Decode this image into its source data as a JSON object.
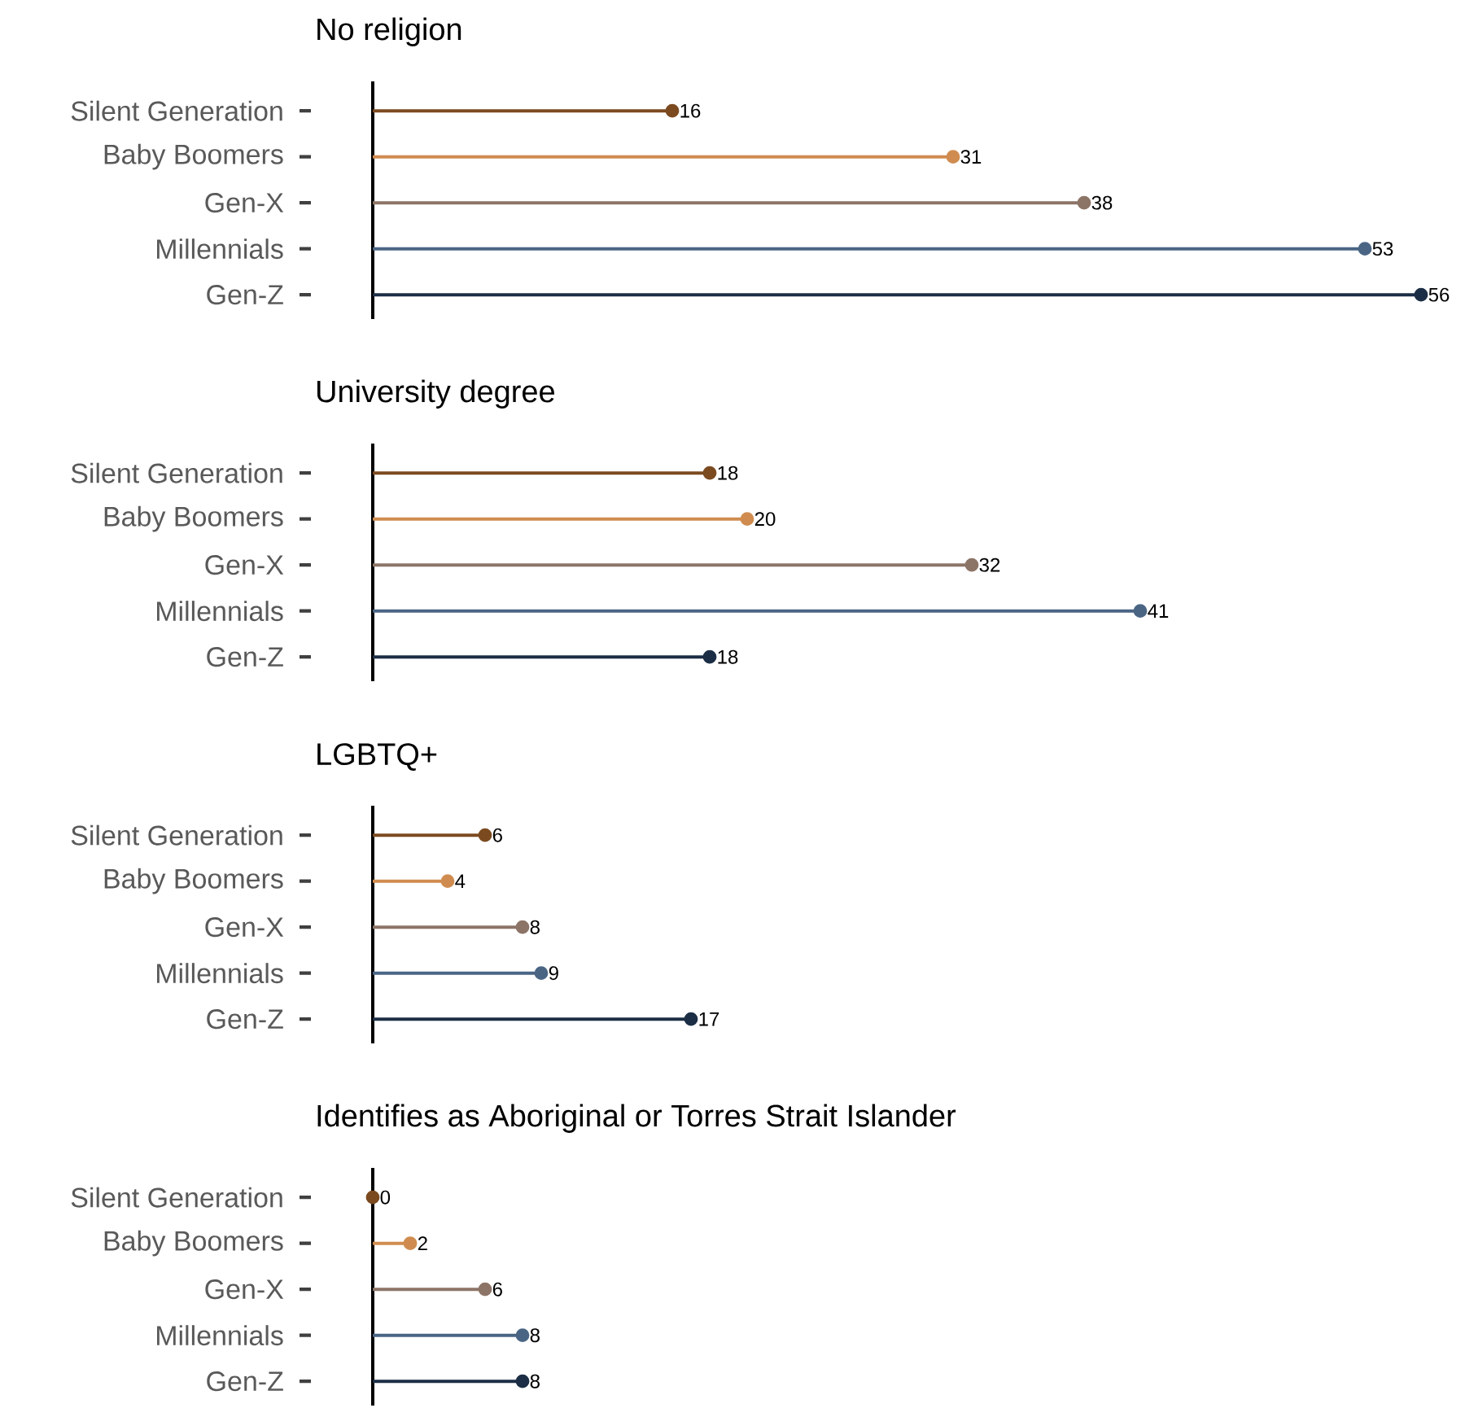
{
  "chart_data": [
    {
      "type": "lollipop",
      "orientation": "horizontal",
      "title": "No religion",
      "categories": [
        "Silent Generation",
        "Baby Boomers",
        "Gen-X",
        "Millennials",
        "Gen-Z"
      ],
      "values": [
        16,
        31,
        38,
        53,
        56
      ],
      "colors": [
        "#7b4a1f",
        "#d08c50",
        "#8c7467",
        "#4a6584",
        "#1c2e45"
      ],
      "data_labels": true,
      "tick_labels": "y"
    },
    {
      "type": "lollipop",
      "orientation": "horizontal",
      "title": "University degree",
      "categories": [
        "Silent Generation",
        "Baby Boomers",
        "Gen-X",
        "Millennials",
        "Gen-Z"
      ],
      "values": [
        18,
        20,
        32,
        41,
        18
      ],
      "colors": [
        "#7b4a1f",
        "#d08c50",
        "#8c7467",
        "#4a6584",
        "#1c2e45"
      ],
      "data_labels": true,
      "tick_labels": "y"
    },
    {
      "type": "lollipop",
      "orientation": "horizontal",
      "title": "LGBTQ+",
      "categories": [
        "Silent Generation",
        "Baby Boomers",
        "Gen-X",
        "Millennials",
        "Gen-Z"
      ],
      "values": [
        6,
        4,
        8,
        9,
        17
      ],
      "colors": [
        "#7b4a1f",
        "#d08c50",
        "#8c7467",
        "#4a6584",
        "#1c2e45"
      ],
      "data_labels": true,
      "tick_labels": "y"
    },
    {
      "type": "lollipop",
      "orientation": "horizontal",
      "title": "Identifies as Aboriginal or Torres Strait Islander",
      "categories": [
        "Silent Generation",
        "Baby Boomers",
        "Gen-X",
        "Millennials",
        "Gen-Z"
      ],
      "values": [
        0,
        2,
        6,
        8,
        8
      ],
      "colors": [
        "#7b4a1f",
        "#d08c50",
        "#8c7467",
        "#4a6584",
        "#1c2e45"
      ],
      "data_labels": true,
      "tick_labels": "y"
    }
  ]
}
